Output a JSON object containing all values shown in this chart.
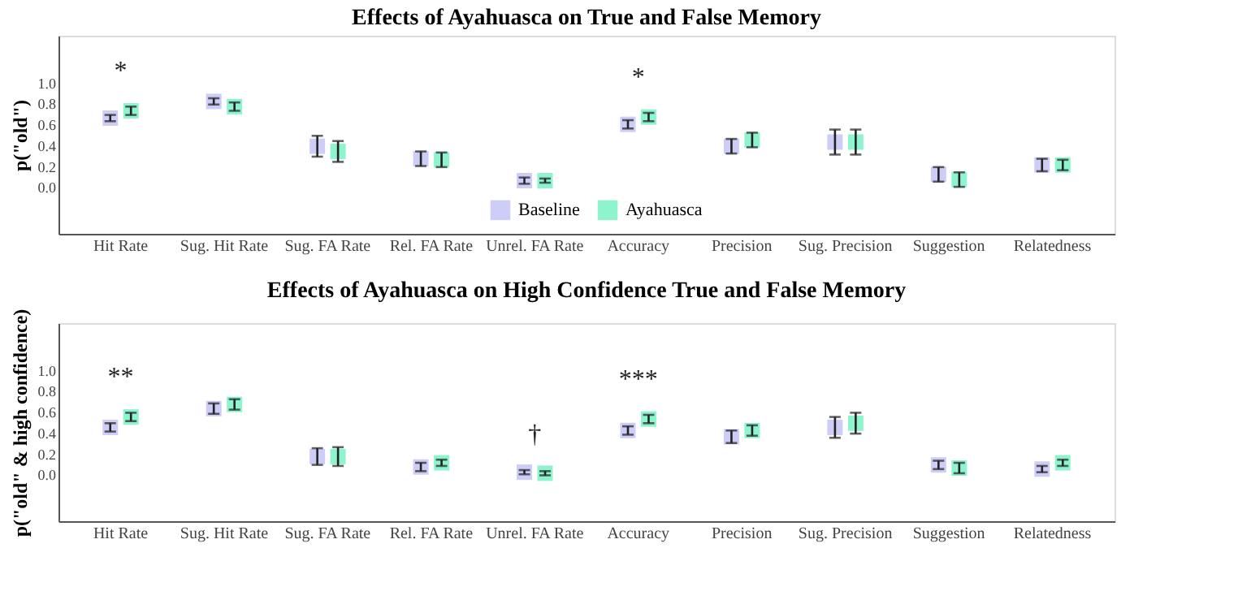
{
  "chart_data": [
    {
      "type": "scatter",
      "title": "Effects of Ayahuasca on True and False Memory",
      "ylabel": "p(\"old\")",
      "categories": [
        "Hit Rate",
        "Sug. Hit Rate",
        "Sug. FA Rate",
        "Rel. FA Rate",
        "Unrel. FA Rate",
        "Accuracy",
        "Precision",
        "Sug. Precision",
        "Suggestion",
        "Relatedness"
      ],
      "series": [
        {
          "name": "Baseline",
          "color": "#b8b8f5",
          "values": [
            0.66,
            0.82,
            0.39,
            0.27,
            0.06,
            0.6,
            0.39,
            0.43,
            0.12,
            0.21
          ],
          "errors": [
            0.03,
            0.03,
            0.1,
            0.07,
            0.03,
            0.04,
            0.07,
            0.12,
            0.07,
            0.06
          ]
        },
        {
          "name": "Ayahuasca",
          "color": "#5ef0b8",
          "values": [
            0.73,
            0.77,
            0.34,
            0.26,
            0.06,
            0.67,
            0.45,
            0.43,
            0.07,
            0.21
          ],
          "errors": [
            0.04,
            0.04,
            0.1,
            0.07,
            0.02,
            0.04,
            0.07,
            0.12,
            0.07,
            0.05
          ]
        }
      ],
      "ylim": [
        -0.45,
        1.45
      ],
      "yticks": [
        {
          "value": 0,
          "label": "0.0"
        },
        {
          "value": 0.2,
          "label": "0.2"
        },
        {
          "value": 0.4,
          "label": "0.4"
        },
        {
          "value": 0.6,
          "label": "0.6"
        },
        {
          "value": 0.8,
          "label": "0.8"
        },
        {
          "value": 1,
          "label": "1.0"
        }
      ],
      "annotations": [
        "*",
        "*"
      ],
      "legend": "bottom",
      "grid": false
    },
    {
      "type": "scatter",
      "title": "Effects of Ayahuasca on High Confidence True and False Memory",
      "ylabel": "p(\"old\" & high confidence)",
      "categories": [
        "Hit Rate",
        "Sug. Hit Rate",
        "Sug. FA Rate",
        "Rel. FA Rate",
        "Unrel. FA Rate",
        "Accuracy",
        "Precision",
        "Sug. Precision",
        "Suggestion",
        "Relatedness"
      ],
      "series": [
        {
          "name": "Baseline",
          "color": "#b8b8f5",
          "values": [
            0.45,
            0.63,
            0.17,
            0.07,
            0.02,
            0.42,
            0.36,
            0.45,
            0.09,
            0.05
          ],
          "errors": [
            0.04,
            0.05,
            0.08,
            0.04,
            0.02,
            0.04,
            0.06,
            0.1,
            0.04,
            0.03
          ]
        },
        {
          "name": "Ayahuasca",
          "color": "#5ef0b8",
          "values": [
            0.55,
            0.67,
            0.17,
            0.11,
            0.01,
            0.53,
            0.42,
            0.49,
            0.06,
            0.11
          ],
          "errors": [
            0.04,
            0.05,
            0.09,
            0.03,
            0.02,
            0.04,
            0.05,
            0.1,
            0.05,
            0.03
          ]
        }
      ],
      "ylim": [
        -0.45,
        1.45
      ],
      "yticks": [
        {
          "value": 0,
          "label": "0.0"
        },
        {
          "value": 0.2,
          "label": "0.2"
        },
        {
          "value": 0.4,
          "label": "0.4"
        },
        {
          "value": 0.6,
          "label": "0.6"
        },
        {
          "value": 0.8,
          "label": "0.8"
        },
        {
          "value": 1,
          "label": "1.0"
        }
      ],
      "annotations": [
        "**",
        "***",
        "†"
      ],
      "legend": "bottom",
      "grid": false
    }
  ]
}
